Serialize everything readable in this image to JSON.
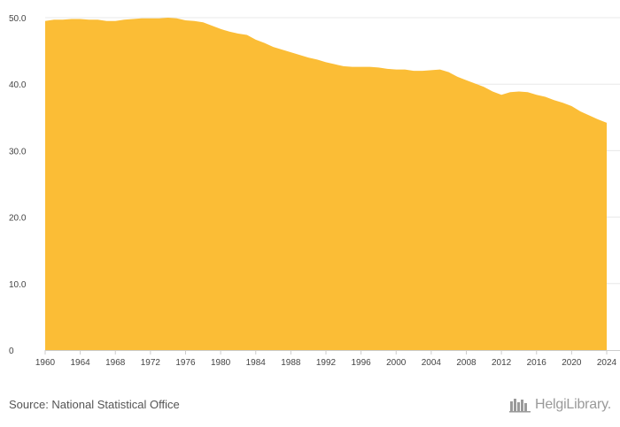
{
  "chart_data": {
    "type": "area",
    "x": [
      1960,
      1961,
      1962,
      1963,
      1964,
      1965,
      1966,
      1967,
      1968,
      1969,
      1970,
      1971,
      1972,
      1973,
      1974,
      1975,
      1976,
      1977,
      1978,
      1979,
      1980,
      1981,
      1982,
      1983,
      1984,
      1985,
      1986,
      1987,
      1988,
      1989,
      1990,
      1991,
      1992,
      1993,
      1994,
      1995,
      1996,
      1997,
      1998,
      1999,
      2000,
      2001,
      2002,
      2003,
      2004,
      2005,
      2006,
      2007,
      2008,
      2009,
      2010,
      2011,
      2012,
      2013,
      2014,
      2015,
      2016,
      2017,
      2018,
      2019,
      2020,
      2021,
      2022,
      2023,
      2024
    ],
    "values": [
      49.5,
      49.7,
      49.7,
      49.8,
      49.8,
      49.7,
      49.7,
      49.5,
      49.5,
      49.7,
      49.8,
      49.9,
      49.9,
      49.9,
      50.0,
      49.9,
      49.6,
      49.5,
      49.3,
      48.8,
      48.3,
      47.9,
      47.6,
      47.4,
      46.7,
      46.2,
      45.6,
      45.2,
      44.8,
      44.4,
      44.0,
      43.7,
      43.3,
      43.0,
      42.7,
      42.6,
      42.6,
      42.6,
      42.5,
      42.3,
      42.2,
      42.2,
      42.0,
      42.0,
      42.1,
      42.2,
      41.8,
      41.1,
      40.6,
      40.1,
      39.6,
      38.9,
      38.4,
      38.8,
      38.9,
      38.8,
      38.4,
      38.1,
      37.6,
      37.2,
      36.7,
      35.9,
      35.3,
      34.7,
      34.2
    ],
    "xticks": [
      "1960",
      "1964",
      "1968",
      "1972",
      "1976",
      "1980",
      "1984",
      "1988",
      "1992",
      "1996",
      "2000",
      "2004",
      "2008",
      "2012",
      "2016",
      "2020",
      "2024"
    ],
    "yticks": [
      "0",
      "10.0",
      "20.0",
      "30.0",
      "40.0",
      "50.0"
    ],
    "xlim": [
      1960,
      2024
    ],
    "ylim": [
      0,
      50
    ],
    "grid": "horizontal",
    "fill_color": "#fbbd36",
    "title": "",
    "xlabel": "",
    "ylabel": ""
  },
  "footer": {
    "source": "Source: National Statistical Office",
    "logo_text": "HelgiLibrary."
  },
  "colors": {
    "grid": "#e8e8e8",
    "axis": "#cccccc",
    "tick_text": "#444444",
    "logo": "#9a9a9a"
  }
}
